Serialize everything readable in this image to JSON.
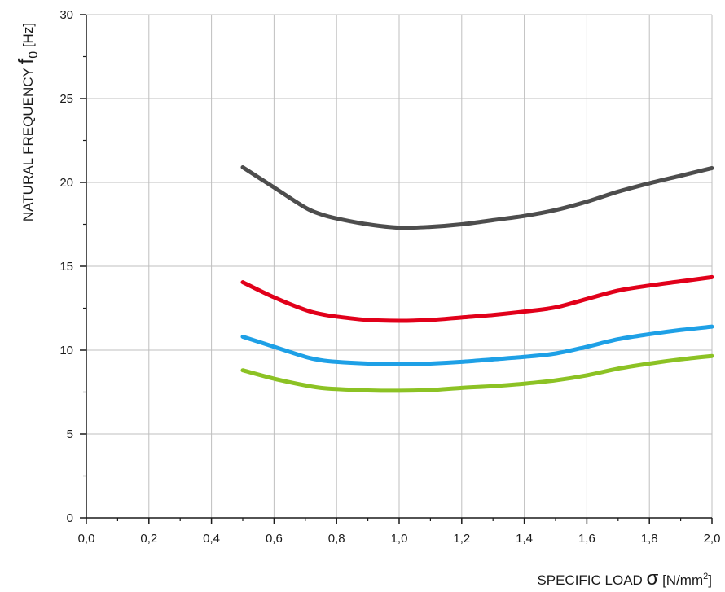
{
  "chart_data": {
    "type": "line",
    "title": "",
    "xlabel": {
      "text": "SPECIFIC LOAD ",
      "symbol": "σ",
      "unit_open": " [N/mm",
      "unit_sup": "2",
      "unit_close": "]"
    },
    "ylabel": {
      "text": "NATURAL FREQUENCY ",
      "symbol": "f",
      "subscript": "0",
      "unit": " [Hz]"
    },
    "xlim": [
      0,
      2.0
    ],
    "ylim": [
      0,
      30
    ],
    "x_ticks": [
      0,
      0.2,
      0.4,
      0.6,
      0.8,
      1.0,
      1.2,
      1.4,
      1.6,
      1.8,
      2.0
    ],
    "x_tick_labels": [
      "0,0",
      "0,2",
      "0,4",
      "0,6",
      "0,8",
      "1,0",
      "1,2",
      "1,4",
      "1,6",
      "1,8",
      "2,0"
    ],
    "y_ticks": [
      0,
      5,
      10,
      15,
      20,
      25,
      30
    ],
    "y_tick_labels": [
      "0",
      "5",
      "10",
      "15",
      "20",
      "25",
      "30"
    ],
    "x_minor_step": 0.1,
    "y_minor_step": 2.5,
    "grid": true,
    "legend": "none",
    "series": [
      {
        "color": "#4d4d4d",
        "x": [
          0.5,
          0.6,
          0.7,
          0.75,
          0.8,
          0.9,
          1.0,
          1.1,
          1.2,
          1.3,
          1.4,
          1.5,
          1.6,
          1.7,
          1.8,
          1.9,
          2.0
        ],
        "y": [
          20.9,
          19.7,
          18.5,
          18.1,
          17.85,
          17.5,
          17.3,
          17.35,
          17.5,
          17.75,
          18.0,
          18.35,
          18.85,
          19.45,
          19.95,
          20.4,
          20.85
        ]
      },
      {
        "color": "#e1001a",
        "x": [
          0.5,
          0.6,
          0.7,
          0.75,
          0.8,
          0.9,
          1.0,
          1.1,
          1.2,
          1.3,
          1.4,
          1.5,
          1.6,
          1.7,
          1.8,
          1.9,
          2.0
        ],
        "y": [
          14.05,
          13.15,
          12.4,
          12.15,
          12.0,
          11.8,
          11.75,
          11.8,
          11.95,
          12.1,
          12.3,
          12.55,
          13.05,
          13.55,
          13.85,
          14.1,
          14.35
        ]
      },
      {
        "color": "#1ea0e6",
        "x": [
          0.5,
          0.6,
          0.7,
          0.75,
          0.8,
          0.9,
          1.0,
          1.1,
          1.2,
          1.3,
          1.4,
          1.5,
          1.6,
          1.7,
          1.8,
          1.9,
          2.0
        ],
        "y": [
          10.8,
          10.2,
          9.6,
          9.4,
          9.3,
          9.2,
          9.15,
          9.2,
          9.3,
          9.45,
          9.6,
          9.8,
          10.2,
          10.65,
          10.95,
          11.2,
          11.4
        ]
      },
      {
        "color": "#8cc224",
        "x": [
          0.5,
          0.6,
          0.7,
          0.75,
          0.8,
          0.9,
          1.0,
          1.1,
          1.2,
          1.3,
          1.4,
          1.5,
          1.6,
          1.7,
          1.8,
          1.9,
          2.0
        ],
        "y": [
          8.8,
          8.3,
          7.9,
          7.75,
          7.68,
          7.6,
          7.58,
          7.62,
          7.75,
          7.85,
          8.0,
          8.2,
          8.5,
          8.9,
          9.2,
          9.45,
          9.65
        ]
      }
    ]
  }
}
